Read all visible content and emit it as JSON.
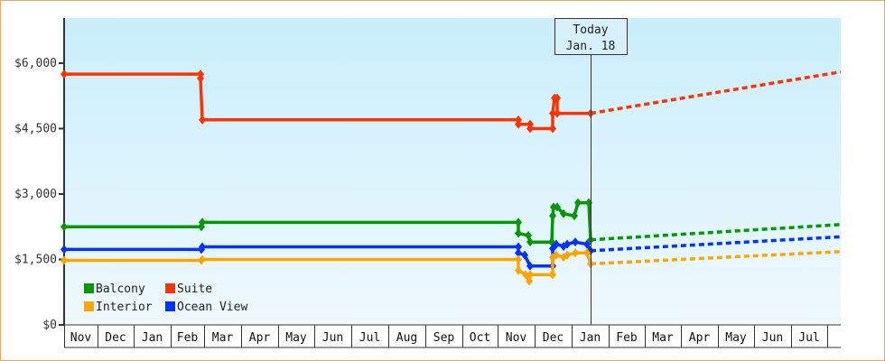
{
  "chart_data": {
    "type": "line",
    "title": "",
    "xlabel": "",
    "ylabel": "",
    "ylim": [
      0,
      7000
    ],
    "y_ticks": [
      {
        "value": 0,
        "label": "$0"
      },
      {
        "value": 1500,
        "label": "$1,500"
      },
      {
        "value": 3000,
        "label": "$3,000"
      },
      {
        "value": 4500,
        "label": "$4,500"
      },
      {
        "value": 6000,
        "label": "$6,000"
      }
    ],
    "x_tick_labels": [
      "Nov",
      "Dec",
      "Jan",
      "Feb",
      "Mar",
      "Apr",
      "May",
      "Jun",
      "Jul",
      "Aug",
      "Sep",
      "Oct",
      "Nov",
      "Dec",
      "Jan",
      "Feb",
      "Mar",
      "Apr",
      "May",
      "Jun",
      "Jul"
    ],
    "grid": false,
    "legend_position": "bottom-left inside",
    "today_marker": {
      "line1": "Today",
      "line2": "Jan. 18"
    },
    "series": [
      {
        "name": "Balcony",
        "color": "#009900",
        "points": [
          [
            "Nov (start)",
            2250
          ],
          [
            "Feb",
            2250
          ],
          [
            "Feb",
            2350
          ],
          [
            "Nov",
            2350
          ],
          [
            "Nov",
            2100
          ],
          [
            "Nov",
            2050
          ],
          [
            "Nov",
            1900
          ],
          [
            "Dec",
            1900
          ],
          [
            "Dec",
            2500
          ],
          [
            "Dec",
            2700
          ],
          [
            "Dec",
            2700
          ],
          [
            "Dec",
            2550
          ],
          [
            "Dec",
            2500
          ],
          [
            "Dec",
            2550
          ],
          [
            "Dec",
            2800
          ],
          [
            "Jan",
            2800
          ],
          [
            "Jan 18",
            1950
          ]
        ],
        "forecast": [
          [
            "Jan 18",
            1950
          ],
          [
            "Jul (end)",
            2300
          ]
        ]
      },
      {
        "name": "Suite",
        "color": "#ff3300",
        "points": [
          [
            "Nov (start)",
            5750
          ],
          [
            "Feb",
            5750
          ],
          [
            "Feb",
            4700
          ],
          [
            "Nov",
            4700
          ],
          [
            "Nov",
            4600
          ],
          [
            "Nov",
            4600
          ],
          [
            "Nov",
            4500
          ],
          [
            "Dec",
            4500
          ],
          [
            "Dec",
            4850
          ],
          [
            "Dec",
            5200
          ],
          [
            "Dec",
            5200
          ],
          [
            "Dec",
            4850
          ],
          [
            "Jan 18",
            4850
          ]
        ],
        "forecast": [
          [
            "Jan 18",
            4850
          ],
          [
            "Jul (end)",
            5800
          ]
        ]
      },
      {
        "name": "Interior",
        "color": "#ffa500",
        "points": [
          [
            "Nov (start)",
            1480
          ],
          [
            "Feb",
            1480
          ],
          [
            "Feb",
            1500
          ],
          [
            "Nov",
            1500
          ],
          [
            "Nov",
            1250
          ],
          [
            "Nov",
            1150
          ],
          [
            "Nov",
            1000
          ],
          [
            "Nov",
            1150
          ],
          [
            "Dec",
            1150
          ],
          [
            "Dec",
            1550
          ],
          [
            "Dec",
            1600
          ],
          [
            "Dec",
            1550
          ],
          [
            "Dec",
            1600
          ],
          [
            "Dec",
            1650
          ],
          [
            "Jan",
            1650
          ],
          [
            "Jan 18",
            1400
          ]
        ],
        "forecast": [
          [
            "Jan 18",
            1400
          ],
          [
            "Jul (end)",
            1680
          ]
        ]
      },
      {
        "name": "Ocean View",
        "color": "#0033ff",
        "points": [
          [
            "Nov (start)",
            1730
          ],
          [
            "Feb",
            1730
          ],
          [
            "Feb",
            1790
          ],
          [
            "Nov",
            1790
          ],
          [
            "Nov",
            1650
          ],
          [
            "Nov",
            1600
          ],
          [
            "Nov",
            1350
          ],
          [
            "Dec",
            1350
          ],
          [
            "Dec",
            1750
          ],
          [
            "Dec",
            1850
          ],
          [
            "Dec",
            1800
          ],
          [
            "Dec",
            1850
          ],
          [
            "Dec",
            1900
          ],
          [
            "Jan",
            1850
          ],
          [
            "Jan 18",
            1700
          ]
        ],
        "forecast": [
          [
            "Jan 18",
            1700
          ],
          [
            "Jul (end)",
            2020
          ]
        ]
      }
    ]
  },
  "legend": {
    "items": [
      {
        "label": "Balcony",
        "color": "#009900"
      },
      {
        "label": "Suite",
        "color": "#ff3300"
      },
      {
        "label": "Interior",
        "color": "#ffa500"
      },
      {
        "label": "Ocean View",
        "color": "#0033ff"
      }
    ]
  },
  "today": {
    "line1": "Today",
    "line2": "Jan. 18"
  },
  "colors": {
    "frame_border": "#e8a868",
    "plot_bg_top": "#c9eefc",
    "plot_bg_bottom": "#eff9fe",
    "axis": "#333333"
  }
}
